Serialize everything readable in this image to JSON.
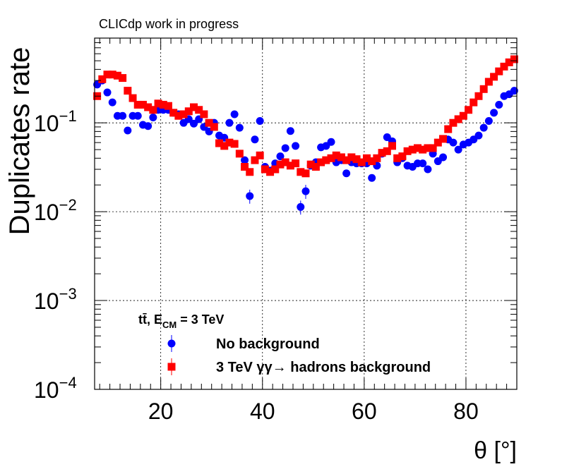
{
  "header_text": "CLICdp work in progress",
  "colors": {
    "series_a": "#0000ff",
    "series_b": "#ff0000",
    "grid": "#000000",
    "axis": "#000000"
  },
  "chart_data": {
    "type": "scatter",
    "xlabel": "θ [°]",
    "ylabel": "Duplicates rate",
    "xlim": [
      7,
      90
    ],
    "ylim": [
      0.0001,
      0.9
    ],
    "yscale": "log",
    "grid": true,
    "legend_position": "bottom-left",
    "x_ticks": [
      20,
      40,
      60,
      80
    ],
    "y_ticks": [
      {
        "mantissa": "10",
        "exp": "−4",
        "value": 0.0001
      },
      {
        "mantissa": "10",
        "exp": "−3",
        "value": 0.001
      },
      {
        "mantissa": "10",
        "exp": "−2",
        "value": 0.01
      },
      {
        "mantissa": "10",
        "exp": "−1",
        "value": 0.1
      }
    ],
    "legend_title": "tt̄, E",
    "legend_title_sub": "CM",
    "legend_title_rest": " = 3 TeV",
    "series": [
      {
        "name": "No background",
        "marker": "circle",
        "x": [
          7.5,
          8.5,
          9.5,
          10.5,
          11.5,
          12.5,
          13.5,
          14.5,
          15.5,
          16.5,
          17.5,
          18.5,
          19.5,
          20.5,
          21.5,
          22.5,
          23.5,
          24.5,
          25.5,
          26.5,
          27.5,
          28.5,
          29.5,
          30.5,
          31.5,
          32.5,
          33.5,
          34.5,
          35.5,
          36.5,
          37.5,
          38.5,
          39.5,
          40.5,
          41.5,
          42.5,
          43.5,
          44.5,
          45.5,
          46.5,
          47.5,
          48.5,
          49.5,
          50.5,
          51.5,
          52.5,
          53.5,
          54.5,
          55.5,
          56.5,
          57.5,
          58.5,
          59.5,
          60.5,
          61.5,
          62.5,
          63.5,
          64.5,
          65.5,
          66.5,
          67.5,
          68.5,
          69.5,
          70.5,
          71.5,
          72.5,
          73.5,
          74.5,
          75.5,
          76.5,
          77.5,
          78.5,
          79.5,
          80.5,
          81.5,
          82.5,
          83.5,
          84.5,
          85.5,
          86.5,
          87.5,
          88.5,
          89.5
        ],
        "y": [
          0.27,
          0.3,
          0.22,
          0.17,
          0.12,
          0.12,
          0.082,
          0.12,
          0.12,
          0.095,
          0.092,
          0.115,
          0.14,
          0.14,
          0.14,
          0.13,
          0.125,
          0.1,
          0.11,
          0.098,
          0.11,
          0.09,
          0.08,
          0.1,
          0.072,
          0.068,
          0.1,
          0.125,
          0.088,
          0.038,
          0.015,
          0.065,
          0.105,
          0.032,
          0.029,
          0.035,
          0.042,
          0.052,
          0.081,
          0.055,
          0.0113,
          0.017,
          0.033,
          0.036,
          0.053,
          0.055,
          0.061,
          0.036,
          0.038,
          0.027,
          0.036,
          0.035,
          0.035,
          0.035,
          0.024,
          0.033,
          0.045,
          0.069,
          0.062,
          0.036,
          0.04,
          0.033,
          0.032,
          0.035,
          0.035,
          0.03,
          0.045,
          0.037,
          0.041,
          0.065,
          0.06,
          0.05,
          0.057,
          0.06,
          0.065,
          0.072,
          0.088,
          0.105,
          0.13,
          0.16,
          0.2,
          0.21,
          0.23
        ]
      },
      {
        "name": "3 TeV  γγ→ hadrons background",
        "marker": "square",
        "x": [
          7.5,
          8.5,
          9.5,
          10.5,
          11.5,
          12.5,
          13.5,
          14.5,
          15.5,
          16.5,
          17.5,
          18.5,
          19.5,
          20.5,
          21.5,
          22.5,
          23.5,
          24.5,
          25.5,
          26.5,
          27.5,
          28.5,
          29.5,
          30.5,
          31.5,
          32.5,
          33.5,
          34.5,
          35.5,
          36.5,
          37.5,
          38.5,
          39.5,
          40.5,
          41.5,
          42.5,
          43.5,
          44.5,
          45.5,
          46.5,
          47.5,
          48.5,
          49.5,
          50.5,
          51.5,
          52.5,
          53.5,
          54.5,
          55.5,
          56.5,
          57.5,
          58.5,
          59.5,
          60.5,
          61.5,
          62.5,
          63.5,
          64.5,
          65.5,
          66.5,
          67.5,
          68.5,
          69.5,
          70.5,
          71.5,
          72.5,
          73.5,
          74.5,
          75.5,
          76.5,
          77.5,
          78.5,
          79.5,
          80.5,
          81.5,
          82.5,
          83.5,
          84.5,
          85.5,
          86.5,
          87.5,
          88.5,
          89.5
        ],
        "y": [
          0.2,
          0.31,
          0.35,
          0.35,
          0.34,
          0.32,
          0.23,
          0.19,
          0.16,
          0.16,
          0.15,
          0.14,
          0.165,
          0.16,
          0.155,
          0.13,
          0.12,
          0.125,
          0.135,
          0.15,
          0.14,
          0.125,
          0.1,
          0.09,
          0.059,
          0.055,
          0.06,
          0.058,
          0.045,
          0.032,
          0.028,
          0.038,
          0.043,
          0.03,
          0.028,
          0.03,
          0.034,
          0.036,
          0.033,
          0.035,
          0.028,
          0.027,
          0.034,
          0.032,
          0.036,
          0.038,
          0.04,
          0.043,
          0.041,
          0.038,
          0.041,
          0.039,
          0.036,
          0.04,
          0.037,
          0.04,
          0.046,
          0.048,
          0.055,
          0.04,
          0.042,
          0.048,
          0.05,
          0.052,
          0.05,
          0.052,
          0.052,
          0.06,
          0.066,
          0.085,
          0.1,
          0.11,
          0.12,
          0.14,
          0.17,
          0.2,
          0.24,
          0.29,
          0.33,
          0.38,
          0.43,
          0.48,
          0.52
        ]
      }
    ]
  }
}
